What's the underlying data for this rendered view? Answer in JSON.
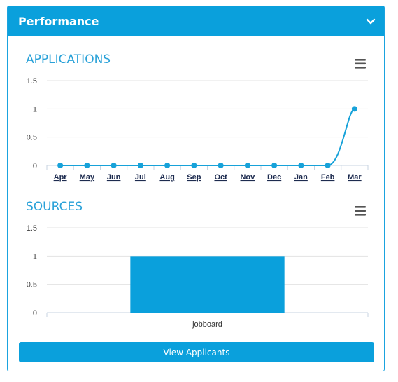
{
  "panel": {
    "title": "Performance",
    "collapse_icon": "chevron-down-icon"
  },
  "charts": {
    "applications": {
      "title": "APPLICATIONS",
      "menu_icon": "hamburger-menu-icon"
    },
    "sources": {
      "title": "SOURCES",
      "menu_icon": "hamburger-menu-icon"
    }
  },
  "chart_data": [
    {
      "type": "line",
      "title": "APPLICATIONS",
      "categories": [
        "Apr",
        "May",
        "Jun",
        "Jul",
        "Aug",
        "Sep",
        "Oct",
        "Nov",
        "Dec",
        "Jan",
        "Feb",
        "Mar"
      ],
      "values": [
        0,
        0,
        0,
        0,
        0,
        0,
        0,
        0,
        0,
        0,
        0,
        1
      ],
      "yticks": [
        "1.5",
        "1",
        "0.5",
        "0"
      ],
      "ylim": [
        0,
        1.5
      ],
      "grid": true,
      "color": "#17a2d9"
    },
    {
      "type": "bar",
      "title": "SOURCES",
      "categories": [
        "jobboard"
      ],
      "values": [
        1
      ],
      "yticks": [
        "1.5",
        "1",
        "0.5",
        "0"
      ],
      "ylim": [
        0,
        1.5
      ],
      "grid": true,
      "color": "#0aa0dc"
    }
  ],
  "actions": {
    "view_applicants": "View Applicants"
  }
}
